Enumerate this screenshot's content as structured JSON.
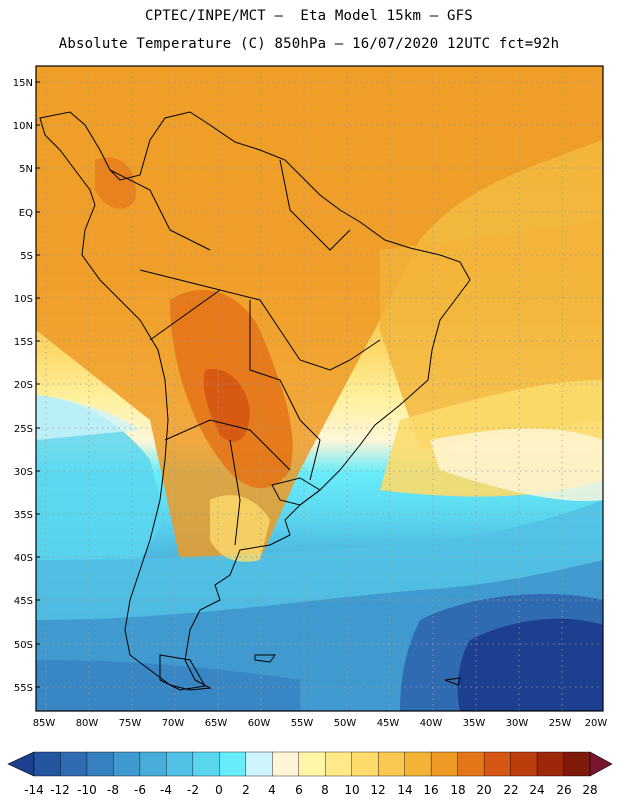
{
  "header": {
    "line1": "CPTEC/INPE/MCT –  Eta Model 15km – GFS",
    "line2": "Absolute Temperature (C) 850hPa – 16/07/2020 12UTC fct=92h"
  },
  "map": {
    "lat_labels": [
      "15N",
      "10N",
      "5N",
      "EQ",
      "5S",
      "10S",
      "15S",
      "20S",
      "25S",
      "30S",
      "35S",
      "40S",
      "45S",
      "50S",
      "55S"
    ],
    "lon_labels": [
      "85W",
      "80W",
      "75W",
      "70W",
      "65W",
      "60W",
      "55W",
      "50W",
      "45W",
      "40W",
      "35W",
      "30W",
      "25W",
      "20W"
    ],
    "regions": [
      "south-america-continent",
      "warm-tropical-atlantic",
      "cold-southern-ocean"
    ]
  },
  "colorbar": {
    "labels": [
      "-14",
      "-12",
      "-10",
      "-8",
      "-6",
      "-4",
      "-2",
      "0",
      "2",
      "4",
      "6",
      "8",
      "10",
      "12",
      "14",
      "16",
      "18",
      "20",
      "22",
      "24",
      "26",
      "28"
    ],
    "colors": [
      "#1d3f8f",
      "#24569f",
      "#2f6bb0",
      "#3681bf",
      "#3f98ce",
      "#48acda",
      "#52c1e6",
      "#5bd6ef",
      "#69ecf9",
      "#cdf4fb",
      "#fff6d9",
      "#fff6a8",
      "#ffe98a",
      "#fcdb6c",
      "#f8c850",
      "#f2b338",
      "#ee9a26",
      "#e4761a",
      "#d45612",
      "#bb3d0c",
      "#9c2709",
      "#7d1a09",
      "#7a1530"
    ]
  }
}
